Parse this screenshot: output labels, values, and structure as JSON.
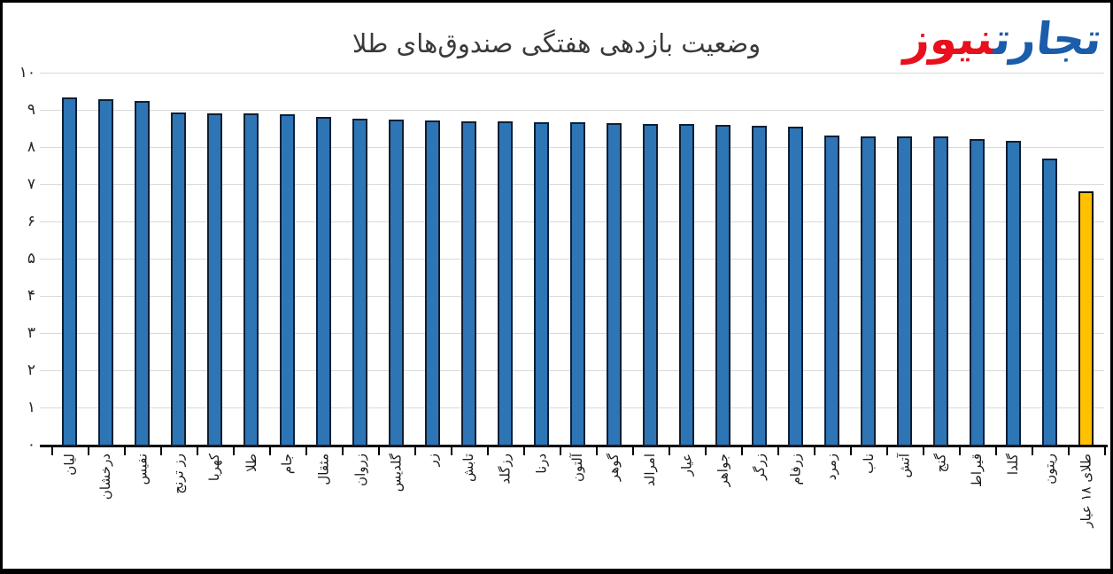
{
  "logo": {
    "blue_text": "تجارت",
    "red_text": "نیوز",
    "blue_color": "#1b5cab",
    "red_color": "#e8101c"
  },
  "chart_data": {
    "type": "bar",
    "title": "وضعیت بازدهی هفتگی صندوق‌های طلا",
    "xlabel": "",
    "ylabel": "",
    "ylim": [
      0,
      10
    ],
    "grid": true,
    "ytick_values": [
      0,
      1,
      2,
      3,
      4,
      5,
      6,
      7,
      8,
      9,
      10
    ],
    "ytick_labels": [
      "۰",
      "۱",
      "۲",
      "۳",
      "۴",
      "۵",
      "۶",
      "۷",
      "۸",
      "۹",
      "۱۰"
    ],
    "categories": [
      "لیان",
      "درخشان",
      "نفیس",
      "رز ترنج",
      "کهربا",
      "طلا",
      "جام",
      "مثقال",
      "زروان",
      "گلدیس",
      "زر",
      "تابش",
      "رزگلد",
      "درنا",
      "آلتون",
      "گوهر",
      "امرالد",
      "عیار",
      "جواهر",
      "زرگر",
      "زرفام",
      "زمرد",
      "ناب",
      "آتش",
      "گنج",
      "قیراط",
      "گلدا",
      "ریتون",
      "طلای ۱۸ عیار"
    ],
    "values": [
      9.33,
      9.29,
      9.24,
      8.94,
      8.91,
      8.91,
      8.89,
      8.81,
      8.77,
      8.74,
      8.72,
      8.7,
      8.68,
      8.67,
      8.66,
      8.64,
      8.62,
      8.61,
      8.59,
      8.57,
      8.54,
      8.3,
      8.29,
      8.28,
      8.28,
      8.22,
      8.16,
      7.7,
      6.8
    ],
    "bar_color_default": "#2e75b6",
    "bar_color_highlight": "#ffc000",
    "highlight_index": 28
  }
}
